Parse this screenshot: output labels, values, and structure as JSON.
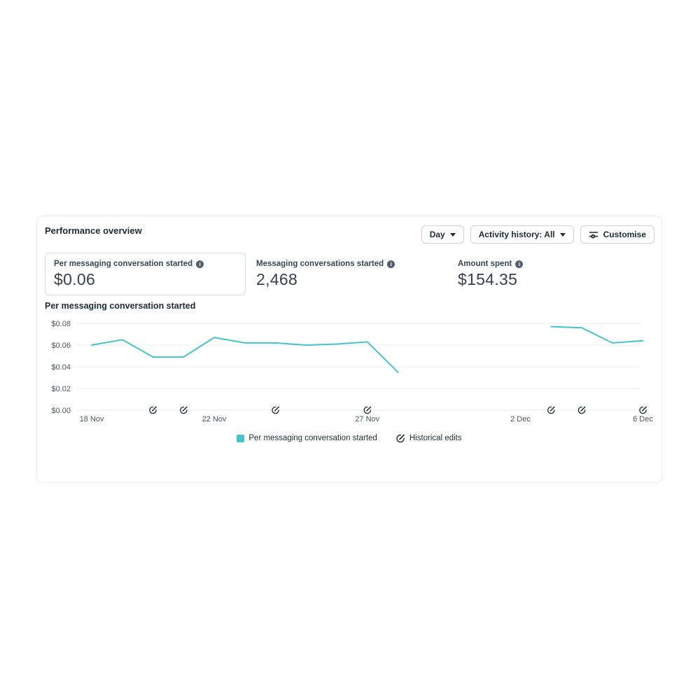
{
  "header": {
    "title": "Performance overview"
  },
  "toolbar": {
    "day_label": "Day",
    "activity_label": "Activity history: All",
    "customise_label": "Customise"
  },
  "icons": {
    "info": "i"
  },
  "metrics": [
    {
      "label": "Per messaging conversation started",
      "value": "$0.06"
    },
    {
      "label": "Messaging conversations started",
      "value": "2,468"
    },
    {
      "label": "Amount spent",
      "value": "$154.35"
    }
  ],
  "chart_data": {
    "type": "line",
    "title": "Per messaging conversation started",
    "x": [
      "18 Nov",
      "19 Nov",
      "20 Nov",
      "21 Nov",
      "22 Nov",
      "23 Nov",
      "24 Nov",
      "25 Nov",
      "26 Nov",
      "27 Nov",
      "28 Nov",
      "29 Nov",
      "30 Nov",
      "1 Dec",
      "2 Dec",
      "3 Dec",
      "4 Dec",
      "5 Dec",
      "6 Dec"
    ],
    "values": [
      0.06,
      0.065,
      0.049,
      0.049,
      0.067,
      0.062,
      0.062,
      0.06,
      0.061,
      0.063,
      0.035,
      null,
      null,
      null,
      null,
      0.077,
      0.076,
      0.062,
      0.064
    ],
    "ylim": [
      0,
      0.08
    ],
    "y_ticks": [
      {
        "value": 0.0,
        "label": "$0.00"
      },
      {
        "value": 0.02,
        "label": "$0.02"
      },
      {
        "value": 0.04,
        "label": "$0.04"
      },
      {
        "value": 0.06,
        "label": "$0.06"
      },
      {
        "value": 0.08,
        "label": "$0.08"
      }
    ],
    "x_ticks": [
      {
        "index": 0,
        "label": "18 Nov"
      },
      {
        "index": 4,
        "label": "22 Nov"
      },
      {
        "index": 9,
        "label": "27 Nov"
      },
      {
        "index": 14,
        "label": "2 Dec"
      },
      {
        "index": 18,
        "label": "6 Dec"
      }
    ],
    "historical_edits": {
      "indices": [
        2,
        3,
        6,
        9,
        15,
        16,
        18
      ]
    },
    "legend": [
      {
        "label": "Per messaging conversation started"
      },
      {
        "label": "Historical edits"
      }
    ],
    "legend_position": "bottom",
    "grid": true,
    "colors": {
      "line": "#45c4cb",
      "grid": "#e9ebed",
      "axis_text": "#4a545c",
      "marker": "#1c2b33"
    }
  }
}
